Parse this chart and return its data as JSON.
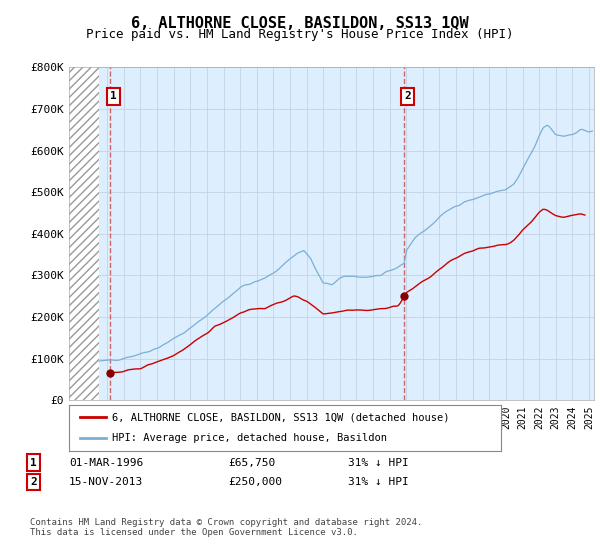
{
  "title": "6, ALTHORNE CLOSE, BASILDON, SS13 1QW",
  "subtitle": "Price paid vs. HM Land Registry's House Price Index (HPI)",
  "title_fontsize": 11,
  "subtitle_fontsize": 9,
  "ylim": [
    0,
    800000
  ],
  "yticks": [
    0,
    100000,
    200000,
    300000,
    400000,
    500000,
    600000,
    700000,
    800000
  ],
  "ytick_labels": [
    "£0",
    "£100K",
    "£200K",
    "£300K",
    "£400K",
    "£500K",
    "£600K",
    "£700K",
    "£800K"
  ],
  "xlim_start": 1993.7,
  "xlim_end": 2025.3,
  "hatch_end": 1995.5,
  "sale1_x": 1996.17,
  "sale1_y": 65750,
  "sale2_x": 2013.88,
  "sale2_y": 250000,
  "red_line_color": "#cc0000",
  "blue_line_color": "#7bafd4",
  "background_color": "#ffffff",
  "plot_bg_color": "#ddeeff",
  "grid_color": "#c0cce0",
  "legend_label1": "6, ALTHORNE CLOSE, BASILDON, SS13 1QW (detached house)",
  "legend_label2": "HPI: Average price, detached house, Basildon",
  "annotation1_date": "01-MAR-1996",
  "annotation1_price": "£65,750",
  "annotation1_hpi": "31% ↓ HPI",
  "annotation2_date": "15-NOV-2013",
  "annotation2_price": "£250,000",
  "annotation2_hpi": "31% ↓ HPI",
  "footer": "Contains HM Land Registry data © Crown copyright and database right 2024.\nThis data is licensed under the Open Government Licence v3.0."
}
